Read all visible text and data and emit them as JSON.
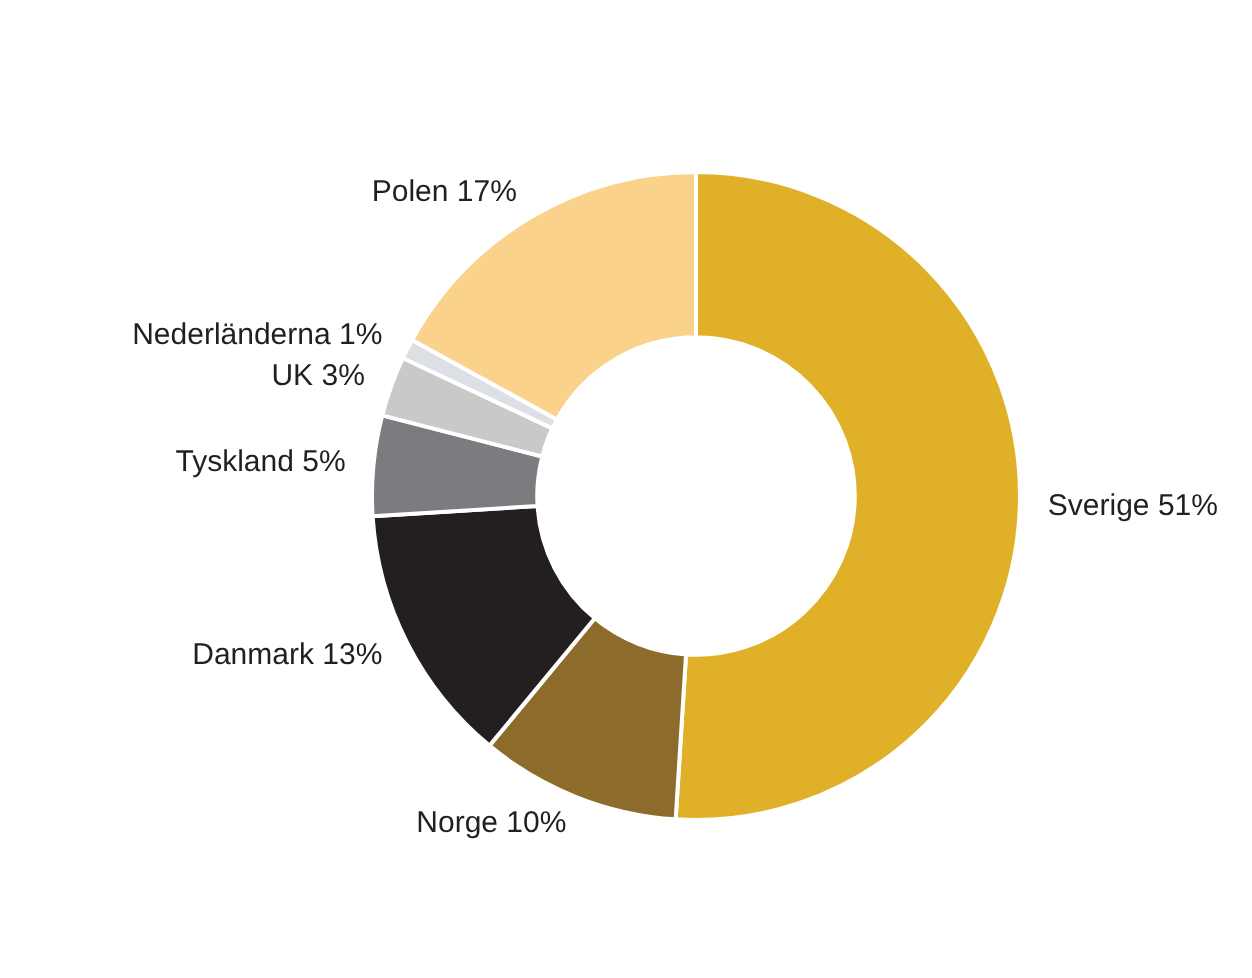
{
  "chart_data": {
    "type": "donut",
    "categories": [
      "Sverige",
      "Norge",
      "Danmark",
      "Tyskland",
      "UK",
      "Nederländerna",
      "Polen"
    ],
    "values": [
      51,
      10,
      13,
      5,
      3,
      1,
      17
    ],
    "value_labels": [
      "51%",
      "10%",
      "13%",
      "5%",
      "3%",
      "1%",
      "17%"
    ],
    "colors": [
      "#e0b128",
      "#8c6b2b",
      "#231f20",
      "#7b7c7f",
      "#c9c9c9",
      "#dce0e6",
      "#fbd28b"
    ],
    "legend": false
  }
}
